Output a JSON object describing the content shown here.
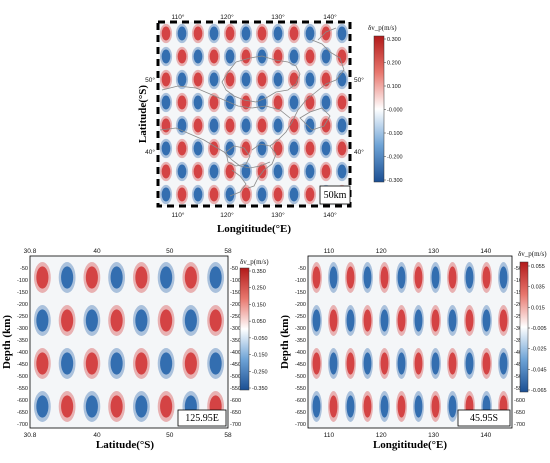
{
  "figure": {
    "panels": [
      {
        "id": "map",
        "label": "50km",
        "top_ticks": [
          "110°",
          "120°",
          "130°",
          "140°"
        ],
        "bottom_ticks": [
          "110°",
          "120°",
          "130°",
          "140°"
        ],
        "left_ticks": [
          "50°",
          "40°"
        ],
        "right_ticks": [
          "50°",
          "40°"
        ],
        "xlabel": "Longititude(°E)",
        "ylabel": "Latitude(°S)",
        "colorbar": {
          "title": "δv_p(m/s)",
          "ticks": [
            "0.300",
            "0.200",
            "0.100",
            "-0.000",
            "-0.100",
            "-0.200",
            "-0.300"
          ]
        }
      },
      {
        "id": "lat-section",
        "label": "125.95E",
        "top_ticks": [
          "30.8",
          "40",
          "50",
          "58"
        ],
        "bottom_ticks": [
          "30.8",
          "40",
          "50",
          "58"
        ],
        "left_ticks": [
          "-50",
          "-100",
          "-150",
          "-200",
          "-250",
          "-300",
          "-350",
          "-400",
          "-450",
          "-500",
          "-550",
          "-600",
          "-650",
          "-700"
        ],
        "right_ticks": [
          "-50",
          "-100",
          "-150",
          "-200",
          "-250",
          "-300",
          "-350",
          "-400",
          "-450",
          "-500",
          "-550",
          "-600",
          "-650",
          "-700"
        ],
        "xlabel": "Latitude(°S)",
        "ylabel": "Depth (km)",
        "colorbar": {
          "title": "δv_p(m/s)",
          "ticks": [
            "0.350",
            "0.250",
            "0.150",
            "0.050",
            "-0.050",
            "-0.150",
            "-0.250",
            "-0.350"
          ]
        }
      },
      {
        "id": "lon-section",
        "label": "45.95S",
        "top_ticks": [
          "110",
          "120",
          "130",
          "140"
        ],
        "bottom_ticks": [
          "110",
          "120",
          "130",
          "140"
        ],
        "left_ticks": [
          "-50",
          "-100",
          "-150",
          "-200",
          "-250",
          "-300",
          "-350",
          "-400",
          "-450",
          "-500",
          "-550",
          "-600",
          "-650",
          "-700"
        ],
        "right_ticks": [
          "-50",
          "-100",
          "-150",
          "-200",
          "-250",
          "-300",
          "-350",
          "-400",
          "-450",
          "-500",
          "-550",
          "-600",
          "-650",
          "-700"
        ],
        "xlabel": "Longititude(°E)",
        "ylabel": "Depth (km)",
        "colorbar": {
          "title": "δv_p(m/s)",
          "ticks": [
            "0.055",
            "0.035",
            "0.015",
            "-0.005",
            "-0.025",
            "-0.045",
            "-0.065"
          ]
        }
      }
    ]
  },
  "chart_data": [
    {
      "type": "heatmap",
      "panel": "map",
      "pattern": "checkerboard",
      "cols": 12,
      "rows": 8,
      "xlim": [
        106.5,
        145.5
      ],
      "ylim": [
        33.5,
        56.5
      ],
      "xlabel": "Longititude(°E)",
      "ylabel": "Latitude(°S)",
      "colorscale": [
        "#1f5fa8",
        "#ffffff",
        "#d03030"
      ],
      "vrange": [
        -0.3,
        0.3
      ],
      "annotation": "50km"
    },
    {
      "type": "heatmap",
      "panel": "lat-section",
      "pattern": "checkerboard",
      "cols": 8,
      "rows": 4,
      "xlim": [
        30.8,
        58
      ],
      "ylim": [
        -720,
        -30
      ],
      "xlabel": "Latitude(°S)",
      "ylabel": "Depth (km)",
      "colorscale": [
        "#1f5fa8",
        "#ffffff",
        "#d03030"
      ],
      "vrange": [
        -0.35,
        0.35
      ],
      "annotation": "125.95E"
    },
    {
      "type": "heatmap",
      "panel": "lon-section",
      "pattern": "checkerboard",
      "cols": 12,
      "rows": 4,
      "xlim": [
        106,
        145
      ],
      "ylim": [
        -720,
        -30
      ],
      "xlabel": "Longititude(°E)",
      "ylabel": "Depth (km)",
      "colorscale": [
        "#1f5fa8",
        "#ffffff",
        "#d03030"
      ],
      "vrange": [
        -0.065,
        0.055
      ],
      "annotation": "45.95S"
    }
  ]
}
